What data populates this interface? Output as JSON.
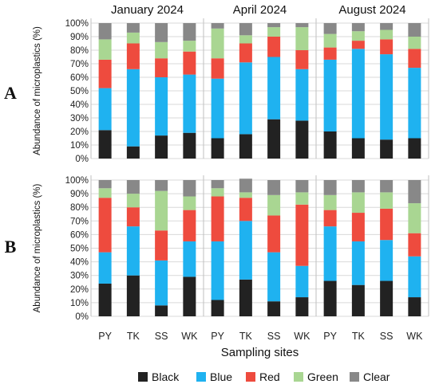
{
  "chart_data": [
    {
      "type": "bar",
      "stacked": true,
      "panel": "A",
      "months": [
        "January 2024",
        "April 2024",
        "August 2024"
      ],
      "categories": [
        "PY",
        "TK",
        "SS",
        "WK"
      ],
      "ylabel": "Abundance of microplastics (%)",
      "ylim": [
        0,
        100
      ],
      "yticks": [
        "0%",
        "10%",
        "20%",
        "30%",
        "40%",
        "50%",
        "60%",
        "70%",
        "80%",
        "90%",
        "100%"
      ],
      "series": [
        {
          "name": "Black",
          "color": "#222222",
          "values": [
            [
              21,
              9,
              17,
              19
            ],
            [
              15,
              18,
              29,
              28
            ],
            [
              20,
              15,
              14,
              15
            ]
          ]
        },
        {
          "name": "Blue",
          "color": "#1fb2f0",
          "values": [
            [
              31,
              57,
              43,
              43
            ],
            [
              44,
              53,
              46,
              38
            ],
            [
              53,
              66,
              63,
              52
            ]
          ]
        },
        {
          "name": "Red",
          "color": "#ee4b3e",
          "values": [
            [
              21,
              19,
              14,
              17
            ],
            [
              15,
              14,
              15,
              14
            ],
            [
              9,
              6,
              11,
              14
            ]
          ]
        },
        {
          "name": "Green",
          "color": "#a9d692",
          "values": [
            [
              15,
              8,
              12,
              8
            ],
            [
              22,
              6,
              7,
              17
            ],
            [
              10,
              7,
              7,
              9
            ]
          ]
        },
        {
          "name": "Clear",
          "color": "#888888",
          "values": [
            [
              12,
              7,
              14,
              13
            ],
            [
              4,
              9,
              3,
              3
            ],
            [
              8,
              6,
              5,
              10
            ]
          ]
        }
      ]
    },
    {
      "type": "bar",
      "stacked": true,
      "panel": "B",
      "months": [
        "January 2024",
        "April 2024",
        "August 2024"
      ],
      "categories": [
        "PY",
        "TK",
        "SS",
        "WK"
      ],
      "ylabel": "Abundance of microplastics (%)",
      "xlabel": "Sampling sites",
      "ylim": [
        0,
        100
      ],
      "yticks": [
        "0%",
        "10%",
        "20%",
        "30%",
        "40%",
        "50%",
        "60%",
        "70%",
        "80%",
        "90%",
        "100%"
      ],
      "series": [
        {
          "name": "Black",
          "color": "#222222",
          "values": [
            [
              24,
              30,
              8,
              29
            ],
            [
              12,
              27,
              11,
              14
            ],
            [
              26,
              23,
              26,
              14
            ]
          ]
        },
        {
          "name": "Blue",
          "color": "#1fb2f0",
          "values": [
            [
              23,
              36,
              33,
              26
            ],
            [
              43,
              43,
              36,
              23
            ],
            [
              40,
              32,
              30,
              30
            ]
          ]
        },
        {
          "name": "Red",
          "color": "#ee4b3e",
          "values": [
            [
              40,
              14,
              22,
              23
            ],
            [
              33,
              17,
              27,
              45
            ],
            [
              12,
              21,
              23,
              17
            ]
          ]
        },
        {
          "name": "Green",
          "color": "#a9d692",
          "values": [
            [
              7,
              10,
              29,
              10
            ],
            [
              6,
              4,
              15,
              9
            ],
            [
              11,
              15,
              12,
              22
            ]
          ]
        },
        {
          "name": "Clear",
          "color": "#888888",
          "values": [
            [
              6,
              10,
              8,
              12
            ],
            [
              6,
              10,
              11,
              9
            ],
            [
              11,
              9,
              9,
              17
            ]
          ]
        }
      ]
    }
  ],
  "legend": [
    "Black",
    "Blue",
    "Red",
    "Green",
    "Clear"
  ]
}
